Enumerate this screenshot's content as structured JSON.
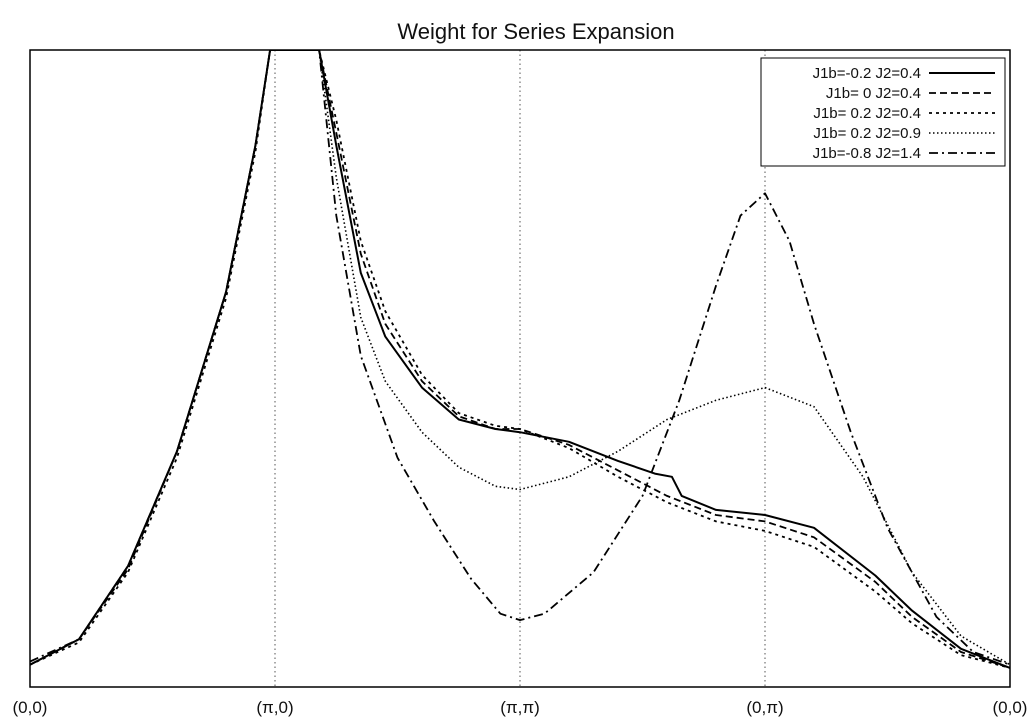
{
  "chart_data": {
    "type": "line",
    "title": "Weight for Series Expansion",
    "xlabel": "",
    "ylabel": "",
    "xlim": [
      0,
      4
    ],
    "ylim": [
      0,
      1
    ],
    "categories": [
      "(0,0)",
      "(π,0)",
      "(π,π)",
      "(0,π)",
      "(0,0)"
    ],
    "grid": "vertical dotted lines at (π,0), (π,π), (0,π)",
    "legend_position": "top-right",
    "series": [
      {
        "name": "J1b=-0.2 J2=0.4",
        "dash": "solid",
        "points": [
          [
            0,
            0.035
          ],
          [
            0.2,
            0.075
          ],
          [
            0.4,
            0.19
          ],
          [
            0.6,
            0.37
          ],
          [
            0.8,
            0.62
          ],
          [
            0.92,
            0.85
          ],
          [
            0.98,
            1.0
          ],
          [
            1.18,
            1.0
          ],
          [
            1.25,
            0.85
          ],
          [
            1.35,
            0.65
          ],
          [
            1.45,
            0.55
          ],
          [
            1.6,
            0.47
          ],
          [
            1.75,
            0.42
          ],
          [
            1.9,
            0.405
          ],
          [
            2.0,
            0.4
          ],
          [
            2.2,
            0.385
          ],
          [
            2.4,
            0.355
          ],
          [
            2.55,
            0.335
          ],
          [
            2.62,
            0.33
          ],
          [
            2.66,
            0.3
          ],
          [
            2.8,
            0.278
          ],
          [
            3.0,
            0.27
          ],
          [
            3.2,
            0.25
          ],
          [
            3.45,
            0.175
          ],
          [
            3.6,
            0.12
          ],
          [
            3.8,
            0.06
          ],
          [
            4.0,
            0.03
          ]
        ]
      },
      {
        "name": "J1b= 0  J2=0.4",
        "dash": "dashed",
        "points": [
          [
            0,
            0.035
          ],
          [
            0.2,
            0.075
          ],
          [
            0.4,
            0.185
          ],
          [
            0.6,
            0.37
          ],
          [
            0.8,
            0.62
          ],
          [
            0.92,
            0.85
          ],
          [
            0.98,
            1.0
          ],
          [
            1.18,
            1.0
          ],
          [
            1.25,
            0.87
          ],
          [
            1.35,
            0.68
          ],
          [
            1.45,
            0.57
          ],
          [
            1.6,
            0.48
          ],
          [
            1.75,
            0.425
          ],
          [
            1.9,
            0.405
          ],
          [
            2.0,
            0.405
          ],
          [
            2.2,
            0.38
          ],
          [
            2.4,
            0.34
          ],
          [
            2.6,
            0.3
          ],
          [
            2.8,
            0.27
          ],
          [
            3.0,
            0.26
          ],
          [
            3.2,
            0.235
          ],
          [
            3.45,
            0.165
          ],
          [
            3.6,
            0.11
          ],
          [
            3.8,
            0.055
          ],
          [
            4.0,
            0.03
          ]
        ]
      },
      {
        "name": "J1b= 0.2 J2=0.4",
        "dash": "dotted",
        "points": [
          [
            0,
            0.035
          ],
          [
            0.2,
            0.07
          ],
          [
            0.4,
            0.18
          ],
          [
            0.6,
            0.36
          ],
          [
            0.8,
            0.61
          ],
          [
            0.92,
            0.84
          ],
          [
            0.98,
            1.0
          ],
          [
            1.18,
            1.0
          ],
          [
            1.25,
            0.89
          ],
          [
            1.35,
            0.7
          ],
          [
            1.45,
            0.59
          ],
          [
            1.6,
            0.49
          ],
          [
            1.75,
            0.43
          ],
          [
            1.9,
            0.41
          ],
          [
            2.0,
            0.405
          ],
          [
            2.2,
            0.375
          ],
          [
            2.4,
            0.33
          ],
          [
            2.6,
            0.29
          ],
          [
            2.8,
            0.26
          ],
          [
            3.0,
            0.245
          ],
          [
            3.2,
            0.22
          ],
          [
            3.45,
            0.15
          ],
          [
            3.6,
            0.1
          ],
          [
            3.8,
            0.05
          ],
          [
            4.0,
            0.03
          ]
        ]
      },
      {
        "name": "J1b= 0.2 J2=0.9",
        "dash": "fine-dotted",
        "points": [
          [
            0,
            0.035
          ],
          [
            0.2,
            0.075
          ],
          [
            0.4,
            0.19
          ],
          [
            0.6,
            0.37
          ],
          [
            0.8,
            0.62
          ],
          [
            0.92,
            0.85
          ],
          [
            0.98,
            1.0
          ],
          [
            1.18,
            1.0
          ],
          [
            1.25,
            0.8
          ],
          [
            1.35,
            0.58
          ],
          [
            1.45,
            0.48
          ],
          [
            1.6,
            0.4
          ],
          [
            1.75,
            0.345
          ],
          [
            1.9,
            0.315
          ],
          [
            2.0,
            0.31
          ],
          [
            2.2,
            0.33
          ],
          [
            2.4,
            0.37
          ],
          [
            2.6,
            0.42
          ],
          [
            2.8,
            0.45
          ],
          [
            3.0,
            0.47
          ],
          [
            3.2,
            0.44
          ],
          [
            3.4,
            0.33
          ],
          [
            3.6,
            0.18
          ],
          [
            3.8,
            0.08
          ],
          [
            4.0,
            0.035
          ]
        ]
      },
      {
        "name": "J1b=-0.8 J2=1.4",
        "dash": "dash-dot",
        "points": [
          [
            0,
            0.04
          ],
          [
            0.2,
            0.075
          ],
          [
            0.4,
            0.19
          ],
          [
            0.6,
            0.37
          ],
          [
            0.8,
            0.62
          ],
          [
            0.92,
            0.85
          ],
          [
            0.98,
            1.0
          ],
          [
            1.18,
            1.0
          ],
          [
            1.25,
            0.74
          ],
          [
            1.35,
            0.52
          ],
          [
            1.5,
            0.36
          ],
          [
            1.65,
            0.26
          ],
          [
            1.8,
            0.17
          ],
          [
            1.92,
            0.115
          ],
          [
            2.0,
            0.105
          ],
          [
            2.1,
            0.115
          ],
          [
            2.3,
            0.18
          ],
          [
            2.5,
            0.3
          ],
          [
            2.65,
            0.45
          ],
          [
            2.8,
            0.63
          ],
          [
            2.9,
            0.74
          ],
          [
            3.0,
            0.775
          ],
          [
            3.1,
            0.7
          ],
          [
            3.2,
            0.57
          ],
          [
            3.35,
            0.4
          ],
          [
            3.5,
            0.25
          ],
          [
            3.7,
            0.11
          ],
          [
            3.85,
            0.055
          ],
          [
            4.0,
            0.035
          ]
        ]
      }
    ]
  }
}
